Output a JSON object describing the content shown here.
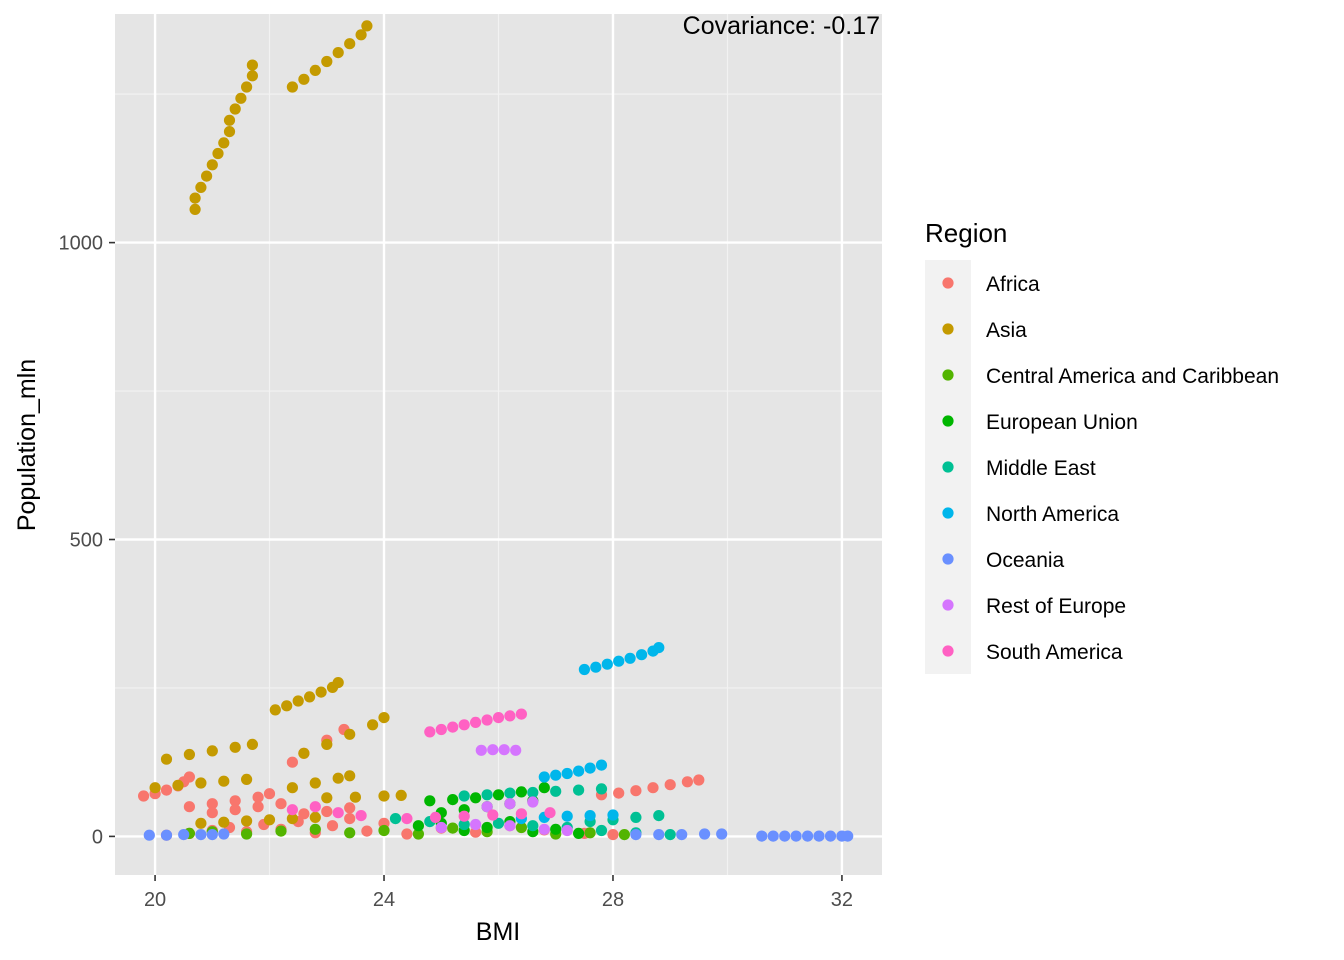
{
  "chart_data": {
    "type": "scatter",
    "title": "",
    "xlabel": "BMI",
    "ylabel": "Population_mln",
    "xlim": [
      19.3,
      32.7
    ],
    "ylim": [
      -65,
      1385
    ],
    "x_ticks": [
      "20",
      "24",
      "28",
      "32"
    ],
    "x_tick_values": [
      20,
      24,
      28,
      32
    ],
    "y_ticks": [
      "0",
      "500",
      "1000"
    ],
    "y_tick_values": [
      0,
      500,
      1000
    ],
    "grid": true,
    "background": "#e5e5e5",
    "legend_title": "Region",
    "legend_position": "right",
    "annotation": "Covariance: -0.17",
    "series": [
      {
        "name": "Africa",
        "color": "#F8766D",
        "points": [
          [
            19.8,
            68
          ],
          [
            20.0,
            72
          ],
          [
            20.2,
            78
          ],
          [
            20.4,
            85
          ],
          [
            20.5,
            92
          ],
          [
            20.6,
            100
          ],
          [
            20.6,
            50
          ],
          [
            21.0,
            55
          ],
          [
            21.4,
            60
          ],
          [
            21.8,
            66
          ],
          [
            22.0,
            72
          ],
          [
            22.4,
            125
          ],
          [
            22.6,
            140
          ],
          [
            23.0,
            162
          ],
          [
            23.3,
            180
          ],
          [
            27.8,
            70
          ],
          [
            28.1,
            73
          ],
          [
            28.4,
            77
          ],
          [
            28.7,
            82
          ],
          [
            29.0,
            87
          ],
          [
            29.3,
            92
          ],
          [
            29.5,
            95
          ],
          [
            20.2,
            2
          ],
          [
            20.6,
            5
          ],
          [
            21.0,
            10
          ],
          [
            21.3,
            15
          ],
          [
            21.6,
            8
          ],
          [
            21.9,
            20
          ],
          [
            22.2,
            12
          ],
          [
            22.5,
            25
          ],
          [
            22.8,
            6
          ],
          [
            23.1,
            18
          ],
          [
            23.4,
            30
          ],
          [
            23.7,
            9
          ],
          [
            24.0,
            22
          ],
          [
            24.4,
            4
          ],
          [
            25.0,
            14
          ],
          [
            25.6,
            7
          ],
          [
            26.2,
            18
          ],
          [
            26.8,
            11
          ],
          [
            27.5,
            5
          ],
          [
            28.0,
            3
          ],
          [
            21.0,
            40
          ],
          [
            21.4,
            45
          ],
          [
            21.8,
            50
          ],
          [
            22.2,
            55
          ],
          [
            22.6,
            38
          ],
          [
            23.0,
            42
          ],
          [
            23.4,
            48
          ]
        ]
      },
      {
        "name": "Asia",
        "color": "#C49A00",
        "points": [
          [
            20.7,
            1056
          ],
          [
            20.7,
            1075
          ],
          [
            20.8,
            1093
          ],
          [
            20.9,
            1112
          ],
          [
            21.0,
            1131
          ],
          [
            21.1,
            1150
          ],
          [
            21.2,
            1168
          ],
          [
            21.3,
            1187
          ],
          [
            21.3,
            1206
          ],
          [
            21.4,
            1225
          ],
          [
            21.5,
            1243
          ],
          [
            21.6,
            1262
          ],
          [
            21.7,
            1281
          ],
          [
            21.7,
            1299
          ],
          [
            22.4,
            1262
          ],
          [
            22.6,
            1275
          ],
          [
            22.8,
            1290
          ],
          [
            23.0,
            1305
          ],
          [
            23.2,
            1320
          ],
          [
            23.4,
            1335
          ],
          [
            23.6,
            1350
          ],
          [
            23.7,
            1365
          ],
          [
            22.1,
            213
          ],
          [
            22.3,
            220
          ],
          [
            22.5,
            228
          ],
          [
            22.7,
            235
          ],
          [
            22.9,
            243
          ],
          [
            23.1,
            251
          ],
          [
            23.2,
            259
          ],
          [
            20.2,
            130
          ],
          [
            20.6,
            138
          ],
          [
            21.0,
            144
          ],
          [
            21.4,
            150
          ],
          [
            21.7,
            155
          ],
          [
            22.6,
            140
          ],
          [
            23.0,
            155
          ],
          [
            23.4,
            172
          ],
          [
            23.8,
            188
          ],
          [
            24.0,
            200
          ],
          [
            20.0,
            82
          ],
          [
            20.4,
            86
          ],
          [
            20.8,
            90
          ],
          [
            21.2,
            93
          ],
          [
            21.6,
            96
          ],
          [
            22.4,
            82
          ],
          [
            22.8,
            90
          ],
          [
            23.2,
            98
          ],
          [
            23.4,
            102
          ],
          [
            23.0,
            65
          ],
          [
            23.5,
            66
          ],
          [
            24.0,
            68
          ],
          [
            24.3,
            69
          ],
          [
            20.8,
            22
          ],
          [
            21.2,
            24
          ],
          [
            21.6,
            26
          ],
          [
            22.0,
            28
          ],
          [
            22.4,
            30
          ],
          [
            22.8,
            32
          ]
        ]
      },
      {
        "name": "Central America and Caribbean",
        "color": "#53B400",
        "points": [
          [
            20.6,
            5
          ],
          [
            21.0,
            8
          ],
          [
            21.6,
            4
          ],
          [
            22.2,
            9
          ],
          [
            22.8,
            12
          ],
          [
            23.4,
            6
          ],
          [
            24.0,
            10
          ],
          [
            24.6,
            4
          ],
          [
            25.2,
            14
          ],
          [
            25.8,
            8
          ],
          [
            26.4,
            15
          ],
          [
            27.0,
            4
          ],
          [
            27.6,
            6
          ],
          [
            28.2,
            3
          ]
        ]
      },
      {
        "name": "European Union",
        "color": "#00B600",
        "points": [
          [
            24.8,
            60
          ],
          [
            25.2,
            62
          ],
          [
            25.6,
            65
          ],
          [
            26.0,
            70
          ],
          [
            26.4,
            75
          ],
          [
            26.8,
            82
          ],
          [
            25.0,
            40
          ],
          [
            25.4,
            45
          ],
          [
            25.8,
            50
          ],
          [
            26.2,
            55
          ],
          [
            26.6,
            60
          ],
          [
            24.6,
            18
          ],
          [
            25.0,
            22
          ],
          [
            25.4,
            10
          ],
          [
            25.8,
            15
          ],
          [
            26.2,
            25
          ],
          [
            26.6,
            8
          ],
          [
            27.0,
            12
          ],
          [
            27.4,
            5
          ]
        ]
      },
      {
        "name": "Middle East",
        "color": "#00C094",
        "points": [
          [
            25.4,
            68
          ],
          [
            25.8,
            70
          ],
          [
            26.2,
            73
          ],
          [
            26.6,
            74
          ],
          [
            27.0,
            76
          ],
          [
            27.4,
            78
          ],
          [
            27.8,
            80
          ],
          [
            27.6,
            25
          ],
          [
            28.0,
            28
          ],
          [
            28.4,
            32
          ],
          [
            28.8,
            35
          ],
          [
            24.2,
            30
          ],
          [
            24.8,
            25
          ],
          [
            25.4,
            20
          ],
          [
            26.0,
            22
          ],
          [
            26.6,
            18
          ],
          [
            27.2,
            15
          ],
          [
            27.8,
            10
          ],
          [
            28.4,
            6
          ],
          [
            29.0,
            3
          ]
        ]
      },
      {
        "name": "North America",
        "color": "#00B6EB",
        "points": [
          [
            27.5,
            281
          ],
          [
            27.7,
            285
          ],
          [
            27.9,
            290
          ],
          [
            28.1,
            295
          ],
          [
            28.3,
            300
          ],
          [
            28.5,
            306
          ],
          [
            28.7,
            312
          ],
          [
            28.8,
            318
          ],
          [
            26.8,
            100
          ],
          [
            27.0,
            103
          ],
          [
            27.2,
            106
          ],
          [
            27.4,
            110
          ],
          [
            27.6,
            115
          ],
          [
            27.8,
            120
          ],
          [
            26.4,
            30
          ],
          [
            26.8,
            32
          ],
          [
            27.2,
            34
          ],
          [
            27.6,
            35
          ],
          [
            28.0,
            36
          ]
        ]
      },
      {
        "name": "Oceania",
        "color": "#6A90FF",
        "points": [
          [
            19.9,
            2
          ],
          [
            20.2,
            2
          ],
          [
            20.5,
            3
          ],
          [
            20.8,
            3
          ],
          [
            21.0,
            3
          ],
          [
            21.2,
            4
          ],
          [
            28.4,
            3
          ],
          [
            28.8,
            3
          ],
          [
            29.2,
            3
          ],
          [
            29.6,
            4
          ],
          [
            29.9,
            4
          ],
          [
            30.6,
            0.5
          ],
          [
            30.8,
            0.5
          ],
          [
            31.0,
            0.5
          ],
          [
            31.2,
            0.5
          ],
          [
            31.4,
            0.5
          ],
          [
            31.6,
            0.5
          ],
          [
            31.8,
            0.5
          ],
          [
            32.0,
            0.5
          ],
          [
            32.1,
            0.5
          ]
        ]
      },
      {
        "name": "Rest of Europe",
        "color": "#D575FE",
        "points": [
          [
            25.7,
            145
          ],
          [
            25.9,
            146
          ],
          [
            26.1,
            146
          ],
          [
            26.3,
            145
          ],
          [
            25.8,
            50
          ],
          [
            26.2,
            55
          ],
          [
            26.6,
            58
          ],
          [
            25.0,
            15
          ],
          [
            25.6,
            20
          ],
          [
            26.2,
            18
          ],
          [
            26.8,
            12
          ],
          [
            27.2,
            10
          ]
        ]
      },
      {
        "name": "South America",
        "color": "#FF61C3",
        "points": [
          [
            24.8,
            176
          ],
          [
            25.0,
            180
          ],
          [
            25.2,
            184
          ],
          [
            25.4,
            188
          ],
          [
            25.6,
            192
          ],
          [
            25.8,
            196
          ],
          [
            26.0,
            200
          ],
          [
            26.2,
            203
          ],
          [
            26.4,
            206
          ],
          [
            22.4,
            45
          ],
          [
            22.8,
            50
          ],
          [
            23.2,
            40
          ],
          [
            23.6,
            35
          ],
          [
            24.4,
            30
          ],
          [
            24.9,
            32
          ],
          [
            25.4,
            34
          ],
          [
            25.9,
            36
          ],
          [
            26.4,
            38
          ],
          [
            26.9,
            40
          ]
        ]
      }
    ]
  }
}
